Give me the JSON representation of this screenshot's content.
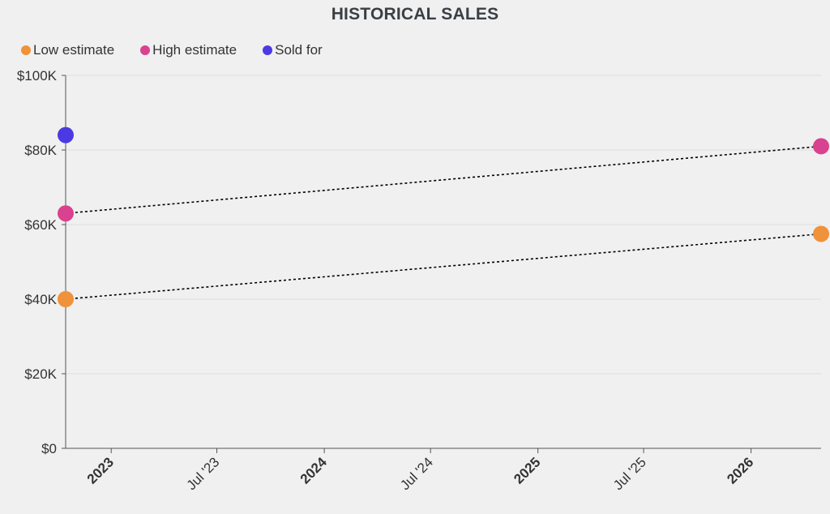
{
  "chart_data": {
    "type": "scatter",
    "title": "HISTORICAL SALES",
    "legend": {
      "placement": "top-left",
      "items": [
        {
          "label": "Low estimate",
          "color": "#f0923a"
        },
        {
          "label": "High estimate",
          "color": "#d9428f"
        },
        {
          "label": "Sold for",
          "color": "#4b3ae3"
        }
      ]
    },
    "ylim": [
      0,
      100000
    ],
    "y_ticks": [
      {
        "value": 0,
        "label": "$0"
      },
      {
        "value": 20000,
        "label": "$20K"
      },
      {
        "value": 40000,
        "label": "$40K"
      },
      {
        "value": 60000,
        "label": "$60K"
      },
      {
        "value": 80000,
        "label": "$80K"
      },
      {
        "value": 100000,
        "label": "$100K"
      }
    ],
    "xlim": [
      "2022-10-15",
      "2026-05-01"
    ],
    "x_ticks": [
      {
        "date": "2023-01-01",
        "label": "2023",
        "major": true
      },
      {
        "date": "2023-07-01",
        "label": "Jul '23",
        "major": false
      },
      {
        "date": "2024-01-01",
        "label": "2024",
        "major": true
      },
      {
        "date": "2024-07-01",
        "label": "Jul '24",
        "major": false
      },
      {
        "date": "2025-01-01",
        "label": "2025",
        "major": true
      },
      {
        "date": "2025-07-01",
        "label": "Jul '25",
        "major": false
      },
      {
        "date": "2026-01-01",
        "label": "2026",
        "major": true
      }
    ],
    "grid": true,
    "series": [
      {
        "name": "Low estimate",
        "color": "#f0923a",
        "points": [
          {
            "x": "2022-10-15",
            "y": 40000
          },
          {
            "x": "2026-05-01",
            "y": 57500
          }
        ]
      },
      {
        "name": "High estimate",
        "color": "#d9428f",
        "points": [
          {
            "x": "2022-10-15",
            "y": 63000
          },
          {
            "x": "2026-05-01",
            "y": 81000
          }
        ]
      },
      {
        "name": "Sold for",
        "color": "#4b3ae3",
        "points": [
          {
            "x": "2022-10-15",
            "y": 84000
          }
        ]
      }
    ],
    "trend_lines": [
      {
        "series": "Low estimate",
        "style": "dotted",
        "color": "#000000"
      },
      {
        "series": "High estimate",
        "style": "dotted",
        "color": "#000000"
      }
    ]
  }
}
